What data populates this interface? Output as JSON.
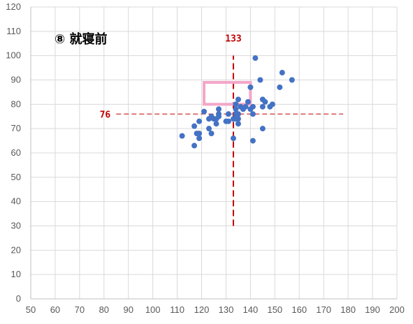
{
  "chart_data": {
    "type": "scatter",
    "title": "⑧ 就寝前",
    "xlabel": "",
    "ylabel": "",
    "xlim": [
      50,
      200
    ],
    "ylim": [
      0,
      120
    ],
    "x_step": 10,
    "y_step": 10,
    "grid": true,
    "legend": "none",
    "colors": {
      "point": "#4472c4",
      "reference": "#c00000",
      "target_box": "#f4a6c9",
      "grid": "#d9d9d9",
      "axis": "#bfbfbf"
    },
    "reference_lines": {
      "vertical": {
        "x": 133,
        "y_from": 30,
        "y_to": 100,
        "label": "133"
      },
      "horizontal": {
        "y": 76,
        "x_from": 85,
        "x_to": 178,
        "label": "76"
      }
    },
    "target_box": {
      "x_from": 121,
      "x_to": 140,
      "y_from": 80,
      "y_to": 89
    },
    "series": [
      {
        "values": [
          {
            "x": 112,
            "y": 67
          },
          {
            "x": 117,
            "y": 63
          },
          {
            "x": 117,
            "y": 71
          },
          {
            "x": 118,
            "y": 68
          },
          {
            "x": 119,
            "y": 66
          },
          {
            "x": 119,
            "y": 68
          },
          {
            "x": 119,
            "y": 73
          },
          {
            "x": 121,
            "y": 77
          },
          {
            "x": 123,
            "y": 70
          },
          {
            "x": 123,
            "y": 74
          },
          {
            "x": 124,
            "y": 68
          },
          {
            "x": 124,
            "y": 75
          },
          {
            "x": 125,
            "y": 74
          },
          {
            "x": 126,
            "y": 72
          },
          {
            "x": 126,
            "y": 74
          },
          {
            "x": 127,
            "y": 75
          },
          {
            "x": 127,
            "y": 76
          },
          {
            "x": 127,
            "y": 78
          },
          {
            "x": 130,
            "y": 73
          },
          {
            "x": 131,
            "y": 73
          },
          {
            "x": 131,
            "y": 76
          },
          {
            "x": 133,
            "y": 66
          },
          {
            "x": 133,
            "y": 74
          },
          {
            "x": 134,
            "y": 74
          },
          {
            "x": 134,
            "y": 76
          },
          {
            "x": 134,
            "y": 78
          },
          {
            "x": 134,
            "y": 80
          },
          {
            "x": 135,
            "y": 74
          },
          {
            "x": 135,
            "y": 76
          },
          {
            "x": 135,
            "y": 82
          },
          {
            "x": 135,
            "y": 72
          },
          {
            "x": 136,
            "y": 79
          },
          {
            "x": 137,
            "y": 78
          },
          {
            "x": 138,
            "y": 79
          },
          {
            "x": 139,
            "y": 81
          },
          {
            "x": 140,
            "y": 78
          },
          {
            "x": 140,
            "y": 87
          },
          {
            "x": 141,
            "y": 65
          },
          {
            "x": 141,
            "y": 76
          },
          {
            "x": 141,
            "y": 79
          },
          {
            "x": 142,
            "y": 99
          },
          {
            "x": 144,
            "y": 90
          },
          {
            "x": 145,
            "y": 70
          },
          {
            "x": 145,
            "y": 79
          },
          {
            "x": 145,
            "y": 82
          },
          {
            "x": 146,
            "y": 81
          },
          {
            "x": 148,
            "y": 79
          },
          {
            "x": 149,
            "y": 80
          },
          {
            "x": 152,
            "y": 87
          },
          {
            "x": 153,
            "y": 93
          },
          {
            "x": 157,
            "y": 90
          }
        ]
      }
    ]
  }
}
